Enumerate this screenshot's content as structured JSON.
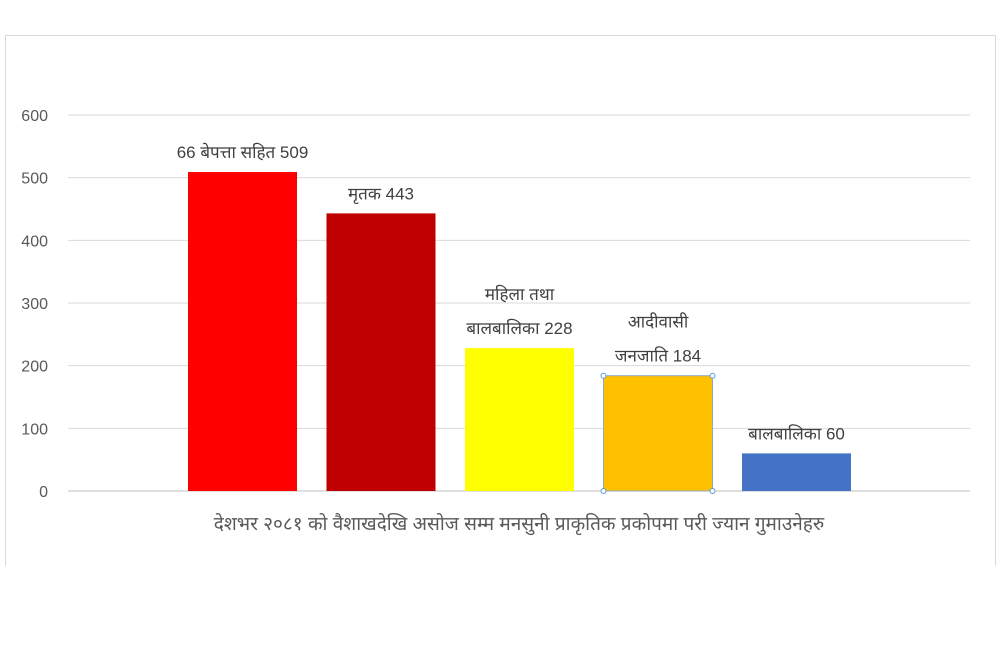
{
  "chart_data": {
    "type": "bar",
    "title": "",
    "xlabel": "",
    "ylabel": "",
    "ylim": [
      0,
      600
    ],
    "yticks": [
      0,
      100,
      200,
      300,
      400,
      500,
      600
    ],
    "grid": true,
    "categories": [
      "देशभर २०८१ को वैशाखदेखि असोज सम्म मनसुनी प्राकृतिक प्रकोपमा परी ज्यान गुमाउनेहरु"
    ],
    "series": [
      {
        "name": "66 बेपत्ता सहित",
        "values": [
          509
        ],
        "color": "#FF0000",
        "label_lines": [
          "66 बेपत्ता सहित 509"
        ]
      },
      {
        "name": "मृतक",
        "values": [
          443
        ],
        "color": "#C00000",
        "label_lines": [
          "मृतक 443"
        ]
      },
      {
        "name": "महिला तथा बालबालिका",
        "values": [
          228
        ],
        "color": "#FFFF00",
        "label_lines": [
          "महिला तथा",
          "बालबालिका 228"
        ]
      },
      {
        "name": "आदीवासी जनजाति",
        "values": [
          184
        ],
        "color": "#FFC000",
        "label_lines": [
          "आदीवासी",
          "जनजाति 184"
        ],
        "selected": true
      },
      {
        "name": "बालबालिका",
        "values": [
          60
        ],
        "color": "#4472C4",
        "label_lines": [
          "बालबालिका 60"
        ]
      }
    ]
  }
}
